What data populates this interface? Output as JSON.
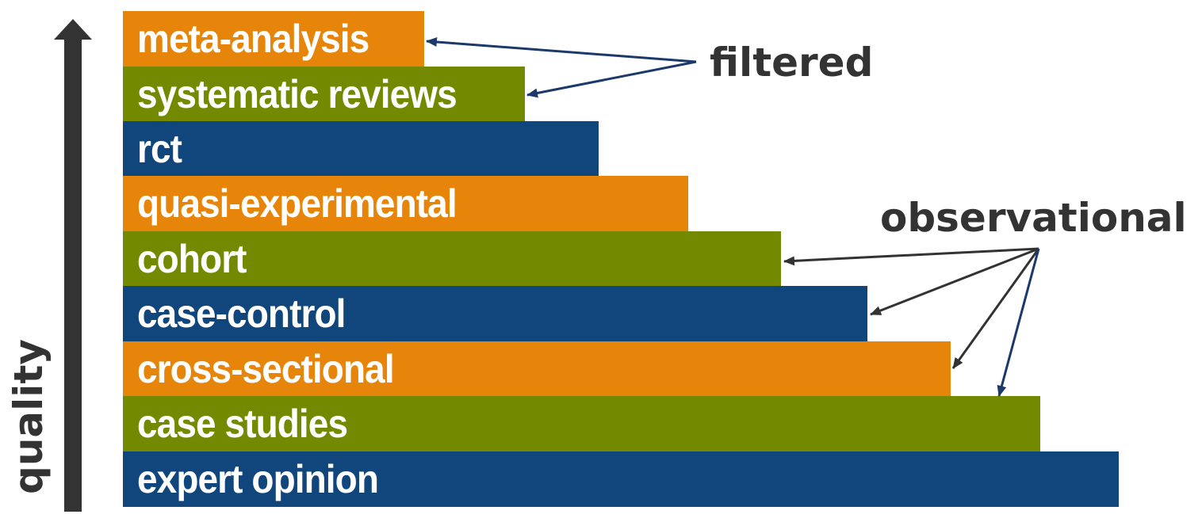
{
  "levels": [
    {
      "label": "meta-analysis",
      "color": "#e6850a"
    },
    {
      "label": "systematic reviews",
      "color": "#738a00"
    },
    {
      "label": "rct",
      "color": "#11467c"
    },
    {
      "label": "quasi-experimental",
      "color": "#e6850a"
    },
    {
      "label": "cohort",
      "color": "#738a00"
    },
    {
      "label": "case-control",
      "color": "#11467c"
    },
    {
      "label": "cross-sectional",
      "color": "#e6850a"
    },
    {
      "label": "case studies",
      "color": "#738a00"
    },
    {
      "label": "expert opinion",
      "color": "#11467c"
    }
  ],
  "groups": {
    "filtered": {
      "label": "filtered",
      "arrow_color": "#1b3a6b"
    },
    "observational": {
      "label": "observational",
      "arrow_color": "#333333"
    }
  },
  "axis": {
    "label": "quality",
    "arrow_color": "#333333"
  },
  "colors": {
    "orange": "#e6850a",
    "green": "#738a00",
    "blue": "#11467c",
    "text_dark": "#333333"
  }
}
